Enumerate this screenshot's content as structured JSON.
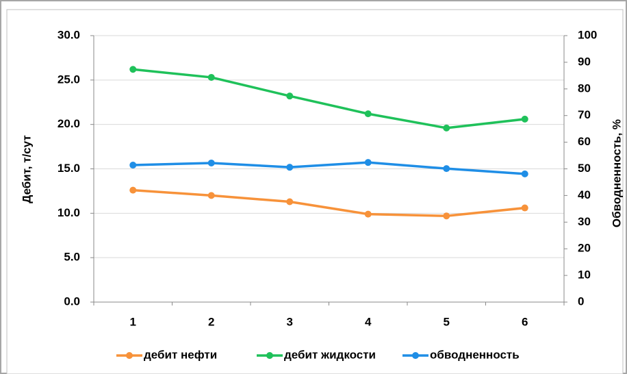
{
  "chart_data": {
    "type": "line",
    "categories": [
      "1",
      "2",
      "3",
      "4",
      "5",
      "6"
    ],
    "ylabel": "Дебит, т/сут",
    "y2label": "Обводненность, %",
    "ylim": [
      0,
      30
    ],
    "yticks": [
      {
        "value": 0,
        "label": "0.0"
      },
      {
        "value": 5,
        "label": "5.0"
      },
      {
        "value": 10,
        "label": "10.0"
      },
      {
        "value": 15,
        "label": "15.0"
      },
      {
        "value": 20,
        "label": "20.0"
      },
      {
        "value": 25,
        "label": "25.0"
      },
      {
        "value": 30,
        "label": "30.0"
      }
    ],
    "y2lim": [
      0,
      100
    ],
    "y2ticks": [
      0,
      10,
      20,
      30,
      40,
      50,
      60,
      70,
      80,
      90,
      100
    ],
    "grid": true,
    "legend": "bottom",
    "series": [
      {
        "name": "дебит нефти",
        "color": "#f7923a",
        "values": [
          12.6,
          12.0,
          11.3,
          9.9,
          9.7,
          10.6
        ]
      },
      {
        "name": "дебит жидкости",
        "color": "#1fc15a",
        "values": [
          26.2,
          25.3,
          23.2,
          21.2,
          19.6,
          20.6
        ]
      },
      {
        "name": "обводненность",
        "color": "#1f8ee6",
        "axis": "y2",
        "values": [
          51.4,
          52.2,
          50.6,
          52.4,
          50.1,
          48.1
        ]
      }
    ]
  }
}
